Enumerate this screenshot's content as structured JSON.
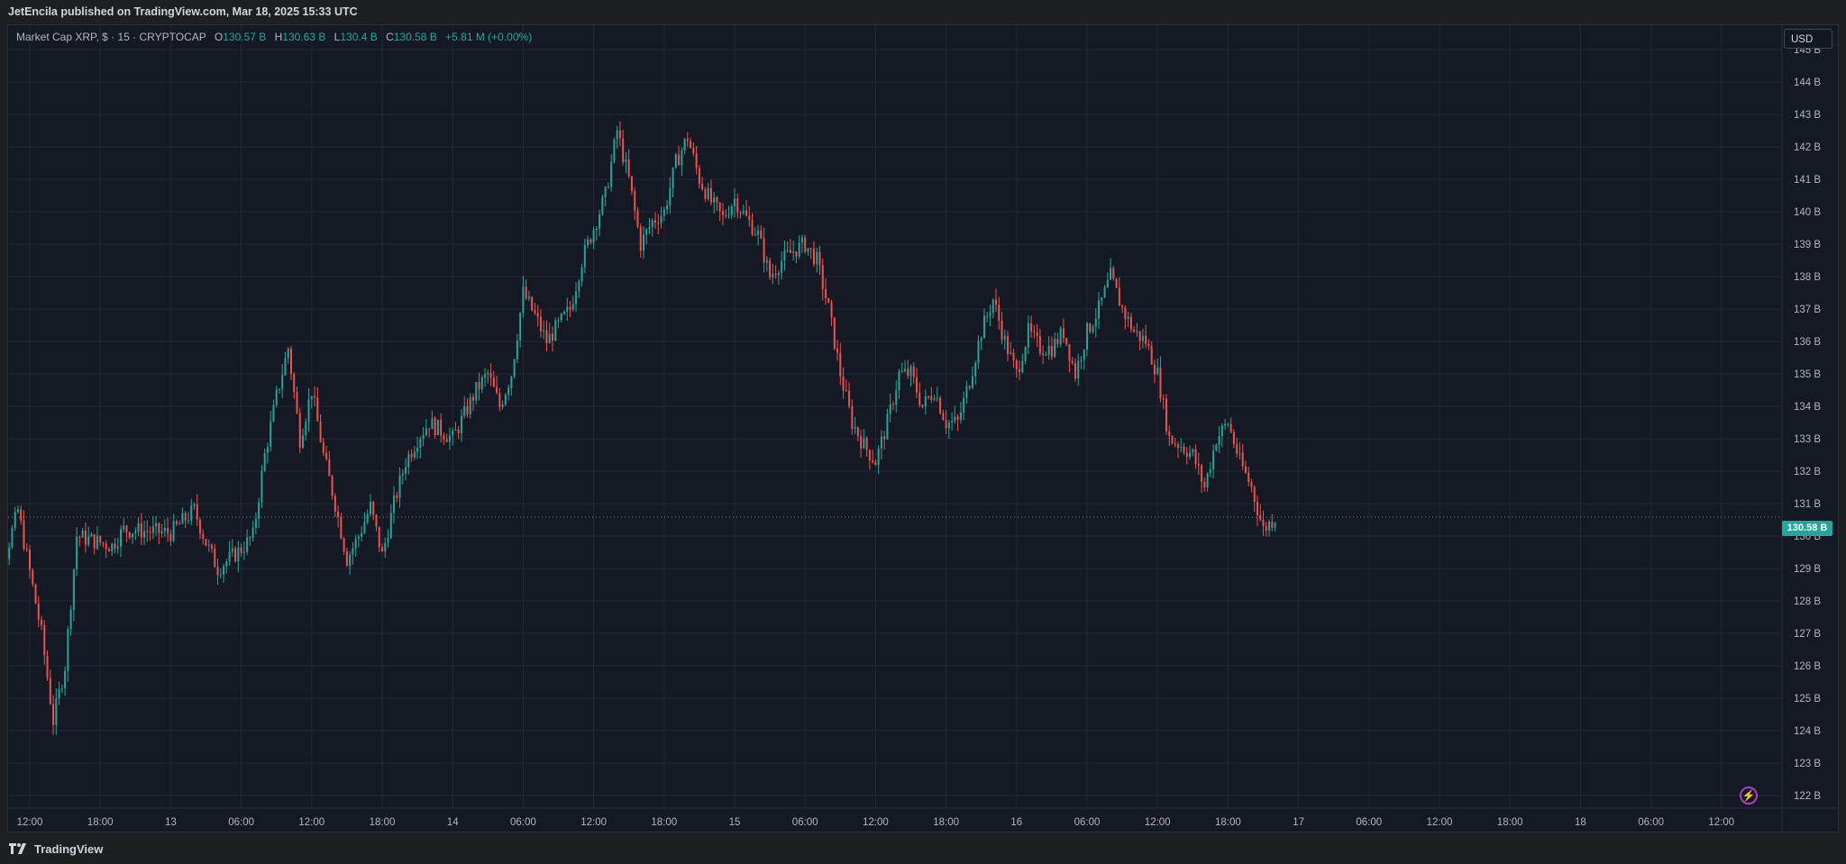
{
  "header": {
    "publish_line": "JetEncila published on TradingView.com, Mar 18, 2025 15:33 UTC"
  },
  "legend": {
    "symbol": "Market Cap XRP, $ · 15 · CRYPTOCAP",
    "open_label": "O",
    "open": "130.57 B",
    "high_label": "H",
    "high": "130.63 B",
    "low_label": "L",
    "low": "130.4 B",
    "close_label": "C",
    "close": "130.58 B",
    "change": "+5.81 M (+0.00%)"
  },
  "currency_button": "USD",
  "last_price_label": "130.58 B",
  "footer": {
    "brand": "TradingView"
  },
  "colors": {
    "up": "#26a69a",
    "down": "#ef5350",
    "background": "#151924",
    "grid": "#232733"
  },
  "icons": {
    "alert": "lightning-icon",
    "logo": "tradingview-logo-icon"
  },
  "chart_data": {
    "type": "candlestick",
    "y_unit": "B USD",
    "ylim": [
      121.8,
      145.6
    ],
    "y_ticks": [
      {
        "value": 122,
        "label": "122 B"
      },
      {
        "value": 123,
        "label": "123 B"
      },
      {
        "value": 124,
        "label": "124 B"
      },
      {
        "value": 125,
        "label": "125 B"
      },
      {
        "value": 126,
        "label": "126 B"
      },
      {
        "value": 127,
        "label": "127 B"
      },
      {
        "value": 128,
        "label": "128 B"
      },
      {
        "value": 129,
        "label": "129 B"
      },
      {
        "value": 130,
        "label": "130 B"
      },
      {
        "value": 131,
        "label": "131 B"
      },
      {
        "value": 132,
        "label": "132 B"
      },
      {
        "value": 133,
        "label": "133 B"
      },
      {
        "value": 134,
        "label": "134 B"
      },
      {
        "value": 135,
        "label": "135 B"
      },
      {
        "value": 136,
        "label": "136 B"
      },
      {
        "value": 137,
        "label": "137 B"
      },
      {
        "value": 138,
        "label": "138 B"
      },
      {
        "value": 139,
        "label": "139 B"
      },
      {
        "value": 140,
        "label": "140 B"
      },
      {
        "value": 141,
        "label": "141 B"
      },
      {
        "value": 142,
        "label": "142 B"
      },
      {
        "value": 143,
        "label": "143 B"
      },
      {
        "value": 144,
        "label": "144 B"
      },
      {
        "value": 145,
        "label": "145 B"
      }
    ],
    "x_ticks": [
      "12:00",
      "18:00",
      "13",
      "06:00",
      "12:00",
      "18:00",
      "14",
      "06:00",
      "12:00",
      "18:00",
      "15",
      "06:00",
      "12:00",
      "18:00",
      "16",
      "06:00",
      "12:00",
      "18:00",
      "17",
      "06:00",
      "12:00",
      "18:00",
      "18",
      "06:00",
      "12:00"
    ],
    "x_ticks_start_hour": 12,
    "x_tick_step_hours": 6,
    "last_price": 130.58,
    "anchors": [
      [
        0,
        127.5
      ],
      [
        2,
        129.5
      ],
      [
        3,
        130.8
      ],
      [
        5,
        127.0
      ],
      [
        6,
        124.3
      ],
      [
        7,
        126.0
      ],
      [
        8,
        130.0
      ],
      [
        11,
        129.7
      ],
      [
        12,
        130.2
      ],
      [
        16,
        130.1
      ],
      [
        18,
        130.8
      ],
      [
        19,
        129.8
      ],
      [
        20,
        129.0
      ],
      [
        22,
        129.6
      ],
      [
        23,
        130.0
      ],
      [
        24,
        132.5
      ],
      [
        25,
        134.3
      ],
      [
        26,
        135.8
      ],
      [
        27,
        133.0
      ],
      [
        28,
        134.5
      ],
      [
        29,
        132.5
      ],
      [
        30,
        131.0
      ],
      [
        31,
        129.3
      ],
      [
        32,
        130.0
      ],
      [
        33,
        130.9
      ],
      [
        34,
        129.4
      ],
      [
        35,
        131.0
      ],
      [
        36,
        132.3
      ],
      [
        37,
        133.0
      ],
      [
        38,
        133.5
      ],
      [
        40,
        133.0
      ],
      [
        42,
        134.5
      ],
      [
        43,
        135.0
      ],
      [
        44,
        134.0
      ],
      [
        45,
        135.0
      ],
      [
        46,
        137.5
      ],
      [
        47,
        136.8
      ],
      [
        48,
        136.0
      ],
      [
        49,
        136.5
      ],
      [
        50,
        137.0
      ],
      [
        51,
        138.5
      ],
      [
        52,
        139.5
      ],
      [
        53,
        140.5
      ],
      [
        54,
        142.5
      ],
      [
        55,
        141.0
      ],
      [
        56,
        139.0
      ],
      [
        57,
        139.7
      ],
      [
        58,
        140.0
      ],
      [
        59,
        141.5
      ],
      [
        60,
        142.3
      ],
      [
        61,
        141.0
      ],
      [
        62,
        140.3
      ],
      [
        63,
        139.8
      ],
      [
        64,
        140.4
      ],
      [
        65,
        139.8
      ],
      [
        66,
        139.3
      ],
      [
        67,
        138.0
      ],
      [
        68,
        138.5
      ],
      [
        69,
        138.8
      ],
      [
        70,
        139.0
      ],
      [
        71,
        138.5
      ],
      [
        72,
        137.0
      ],
      [
        73,
        135.0
      ],
      [
        74,
        133.5
      ],
      [
        75,
        132.8
      ],
      [
        76,
        132.3
      ],
      [
        77,
        133.5
      ],
      [
        78,
        135.0
      ],
      [
        79,
        135.0
      ],
      [
        80,
        134.0
      ],
      [
        81,
        134.5
      ],
      [
        82,
        133.5
      ],
      [
        83,
        133.5
      ],
      [
        84,
        134.8
      ],
      [
        85,
        136.3
      ],
      [
        86,
        137.3
      ],
      [
        87,
        136.0
      ],
      [
        88,
        135.0
      ],
      [
        89,
        136.3
      ],
      [
        90,
        135.8
      ],
      [
        91,
        135.8
      ],
      [
        92,
        136.3
      ],
      [
        93,
        135.0
      ],
      [
        94,
        136.3
      ],
      [
        95,
        137.0
      ],
      [
        96,
        138.0
      ],
      [
        97,
        137.0
      ],
      [
        98,
        136.3
      ],
      [
        99,
        136.0
      ],
      [
        100,
        135.0
      ],
      [
        101,
        133.0
      ],
      [
        102,
        132.8
      ],
      [
        103,
        132.5
      ],
      [
        104,
        131.5
      ],
      [
        105,
        133.0
      ],
      [
        106,
        133.5
      ],
      [
        107,
        132.3
      ],
      [
        108,
        131.5
      ],
      [
        109,
        130.2
      ],
      [
        110,
        130.58
      ]
    ]
  }
}
